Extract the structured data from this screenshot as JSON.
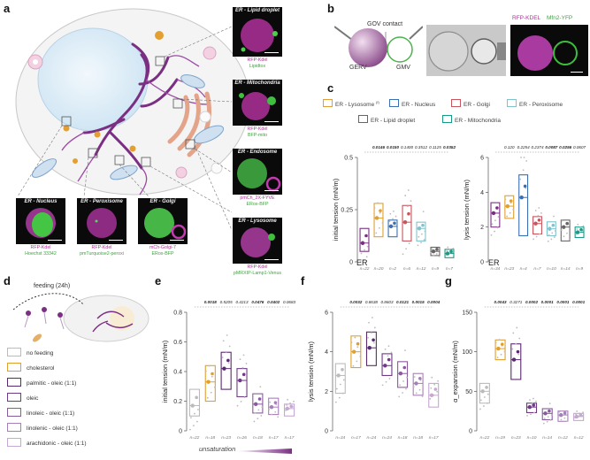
{
  "panels": {
    "a": "a",
    "b": "b",
    "c": "c",
    "d": "d",
    "e": "e",
    "f": "f",
    "g": "g"
  },
  "panel_a": {
    "micro": [
      {
        "id": "ld",
        "title": "ER - Lipid droplet",
        "cap1": "RFP-Kdel",
        "cap2": "Lipidtox"
      },
      {
        "id": "mito",
        "title": "ER - Mitochondria",
        "cap1": "RFP-Kdel",
        "cap2": "BFP-mito"
      },
      {
        "id": "endo",
        "title": "ER - Endosome",
        "cap1": "pmCh_2X-FYVE",
        "cap2": "ERox-BFP"
      },
      {
        "id": "lyso",
        "title": "ER - Lysosome",
        "cap1": "RFP-Kdel",
        "cap2": "pMRXIP-Lamp1-Venus"
      },
      {
        "id": "nuc",
        "title": "ER - Nucleus",
        "cap1": "RFP-Kdel",
        "cap2": "Hoechst 33342"
      },
      {
        "id": "perox",
        "title": "ER - Peroxisome",
        "cap1": "RFP-Kdel",
        "cap2": "pmTurquoise2-peroxi"
      },
      {
        "id": "golgi",
        "title": "ER - Golgi",
        "cap1": "mCh-Golgi-7",
        "cap2": "ERox-BFP"
      }
    ]
  },
  "panel_b": {
    "contact": "GOV contact",
    "gerv": "GERV",
    "gmv": "GMV",
    "ch1": "RFP-KDEL",
    "ch2": "Mfn2-YFP"
  },
  "panel_c": {
    "legend": [
      {
        "label": "ER - Lysosome",
        "sup": "(f)",
        "color": "#e0a030"
      },
      {
        "label": "ER - Nucleus",
        "color": "#3c6fb0"
      },
      {
        "label": "ER - Golgi",
        "color": "#c9545d"
      },
      {
        "label": "ER - Peroxisome",
        "color": "#7fc3cf"
      },
      {
        "label": "ER - Lipid droplet",
        "color": "#666666"
      },
      {
        "label": "ER - Mitochondria",
        "color": "#1a9a86"
      }
    ],
    "er_label": "ER"
  },
  "panel_d": {
    "feeding": "feeding (24h)",
    "legend": [
      {
        "label": "no feeding",
        "color": "#bbbbbb"
      },
      {
        "label": "cholesterol",
        "color": "#e0a030"
      },
      {
        "label": "palmitic - oleic (1:1)",
        "color": "#5a2a6e"
      },
      {
        "label": "oleic",
        "color": "#6f3a86"
      },
      {
        "label": "linoleic - oleic (1:1)",
        "color": "#8a5a9e"
      },
      {
        "label": "linolenic - oleic (1:1)",
        "color": "#a77fb8"
      },
      {
        "label": "arachidonic - oleic (1:1)",
        "color": "#c6a8d2"
      }
    ],
    "unsaturation": "unsaturation"
  },
  "chart_data": [
    {
      "id": "c1",
      "type": "box",
      "ylabel": "initial tension (mN/m)",
      "ylim": [
        0,
        0.5
      ],
      "yticks": [
        "0",
        "0.25",
        "0.5"
      ],
      "categories": [
        "ER",
        "Lysosome",
        "Nucleus",
        "Golgi",
        "Peroxisome",
        "Lipid droplet",
        "Mitochondria"
      ],
      "median": [
        0.09,
        0.21,
        0.17,
        0.19,
        0.16,
        0.05,
        0.04
      ],
      "q1": [
        0.05,
        0.12,
        0.12,
        0.1,
        0.1,
        0.03,
        0.02
      ],
      "q3": [
        0.16,
        0.28,
        0.2,
        0.27,
        0.19,
        0.07,
        0.06
      ],
      "n": [
        "n=22",
        "n=20",
        "n=2",
        "n=6",
        "n=12",
        "n=9",
        "n=7"
      ],
      "pvalues": [
        "0.0146",
        "0.0150",
        "0.1400",
        "0.3512",
        "0.1125",
        "0.0352"
      ]
    },
    {
      "id": "c2",
      "type": "box",
      "ylabel": "lysis tension (mN/m)",
      "ylim": [
        0,
        6
      ],
      "yticks": [
        "0",
        "2",
        "4",
        "6"
      ],
      "categories": [
        "ER",
        "Lysosome",
        "Nucleus",
        "Golgi",
        "Peroxisome",
        "Lipid droplet",
        "Mitochondria"
      ],
      "median": [
        2.8,
        3.2,
        3.7,
        2.2,
        1.9,
        2.0,
        1.7
      ],
      "q1": [
        2.0,
        2.5,
        1.5,
        1.6,
        1.5,
        1.2,
        1.4
      ],
      "q3": [
        3.4,
        3.8,
        5.0,
        2.6,
        2.3,
        2.4,
        2.0
      ],
      "n": [
        "n=34",
        "n=23",
        "n=4",
        "n=7",
        "n=10",
        "n=14",
        "n=9"
      ],
      "pvalues": [
        "0.120",
        "0.2254",
        "0.2374",
        "0.0087",
        "0.0256",
        "0.0607"
      ]
    },
    {
      "id": "e",
      "type": "box",
      "ylabel": "initial tension (mN/m)",
      "ylim": [
        0,
        0.8
      ],
      "yticks": [
        "0",
        "0.2",
        "0.4",
        "0.6",
        "0.8"
      ],
      "categories": [
        "no feeding",
        "cholesterol",
        "palmitic-oleic",
        "oleic",
        "linoleic-oleic",
        "linolenic-oleic",
        "arachidonic-oleic"
      ],
      "median": [
        0.17,
        0.33,
        0.42,
        0.34,
        0.18,
        0.16,
        0.15
      ],
      "q1": [
        0.1,
        0.2,
        0.28,
        0.23,
        0.12,
        0.11,
        0.1
      ],
      "q3": [
        0.28,
        0.44,
        0.53,
        0.42,
        0.25,
        0.22,
        0.18
      ],
      "n": [
        "n=22",
        "n=18",
        "n=23",
        "n=26",
        "n=18",
        "n=17",
        "n=17"
      ],
      "pvalues": [
        "0.0018",
        "0.5205",
        "0.4213",
        "0.0476",
        "0.0402",
        "0.0683"
      ]
    },
    {
      "id": "f",
      "type": "box",
      "ylabel": "lysis tension (mN/m)",
      "ylim": [
        0,
        6
      ],
      "yticks": [
        "0",
        "2",
        "4",
        "6"
      ],
      "categories": [
        "no feeding",
        "cholesterol",
        "palmitic-oleic",
        "oleic",
        "linoleic-oleic",
        "linolenic-oleic",
        "arachidonic-oleic"
      ],
      "median": [
        2.8,
        4.0,
        4.2,
        3.3,
        2.9,
        2.4,
        1.8
      ],
      "q1": [
        1.9,
        3.2,
        3.3,
        2.8,
        2.2,
        1.8,
        1.2
      ],
      "q3": [
        3.4,
        4.8,
        5.0,
        3.9,
        3.5,
        2.9,
        2.4
      ],
      "n": [
        "n=34",
        "n=17",
        "n=24",
        "n=24",
        "n=18",
        "n=18",
        "n=17"
      ],
      "pvalues": [
        "0.0032",
        "0.8638",
        "0.8603",
        "0.0121",
        "0.0015",
        "0.0004"
      ]
    },
    {
      "id": "g",
      "type": "box",
      "ylabel": "α_expansion (mN/m)",
      "ylim": [
        0,
        150
      ],
      "yticks": [
        "0",
        "50",
        "100",
        "150"
      ],
      "categories": [
        "no feeding",
        "cholesterol",
        "palmitic-oleic",
        "oleic",
        "linoleic-oleic",
        "linolenic-oleic",
        "arachidonic-oleic"
      ],
      "median": [
        50,
        104,
        90,
        30,
        22,
        20,
        18
      ],
      "q1": [
        35,
        90,
        65,
        23,
        14,
        12,
        13
      ],
      "q3": [
        60,
        115,
        110,
        35,
        28,
        25,
        22
      ],
      "n": [
        "n=22",
        "n=19",
        "n=23",
        "n=10",
        "n=14",
        "n=12",
        "n=12"
      ],
      "pvalues": [
        "0.0043",
        "0.3271",
        "0.0002",
        "0.0001",
        "0.0001",
        "0.0001"
      ]
    }
  ]
}
